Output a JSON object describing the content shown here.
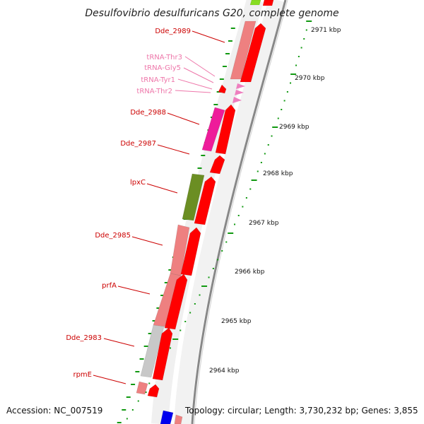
{
  "title": "Desulfovibrio desulfuricans G20, complete genome",
  "footer": {
    "accession": "Accession: NC_007519",
    "topology": "Topology: circular; Length: 3,730,232 bp; Genes: 3,855"
  },
  "colors": {
    "label_red": "#cc0000",
    "label_pink": "#ee77aa",
    "forward_strand": "#ff0000",
    "tick_green": "#119911",
    "backbone": "#888888"
  },
  "scale_labels": [
    "2971 kbp",
    "2970 kbp",
    "2969 kbp",
    "2968 kbp",
    "2967 kbp",
    "2966 kbp",
    "2965 kbp",
    "2964 kbp"
  ],
  "gene_labels": [
    {
      "text": "Dde_2989",
      "color": "#cc0000"
    },
    {
      "text": "tRNA-Thr3",
      "color": "#ee77aa"
    },
    {
      "text": "tRNA-Gly5",
      "color": "#ee77aa"
    },
    {
      "text": "tRNA-Tyr1",
      "color": "#ee77aa"
    },
    {
      "text": "tRNA-Thr2",
      "color": "#ee77aa"
    },
    {
      "text": "Dde_2988",
      "color": "#cc0000"
    },
    {
      "text": "Dde_2987",
      "color": "#cc0000"
    },
    {
      "text": "lpxC",
      "color": "#cc0000"
    },
    {
      "text": "Dde_2985",
      "color": "#cc0000"
    },
    {
      "text": "prfA",
      "color": "#cc0000"
    },
    {
      "text": "Dde_2983",
      "color": "#cc0000"
    },
    {
      "text": "rpmE",
      "color": "#cc0000"
    }
  ],
  "genes": [
    {
      "color": "#ee8080"
    },
    {
      "color": "#ff0000"
    },
    {
      "color": "#ee1c9a"
    },
    {
      "color": "#ff0000"
    },
    {
      "color": "#ff0000"
    },
    {
      "color": "#6b8e23"
    },
    {
      "color": "#ff0000"
    },
    {
      "color": "#ee8080"
    },
    {
      "color": "#ff0000"
    },
    {
      "color": "#ee8080"
    },
    {
      "color": "#ff0000"
    },
    {
      "color": "#c8c8c8"
    },
    {
      "color": "#ff0000"
    },
    {
      "color": "#ee8080"
    },
    {
      "color": "#ff0000"
    },
    {
      "color": "#ff0000"
    },
    {
      "color": "#ee7fbf"
    },
    {
      "color": "#ee7fbf"
    },
    {
      "color": "#ee7fbf"
    },
    {
      "color": "#88dd22"
    },
    {
      "color": "#ff0000"
    },
    {
      "color": "#0000ee"
    },
    {
      "color": "#ee8080"
    }
  ]
}
